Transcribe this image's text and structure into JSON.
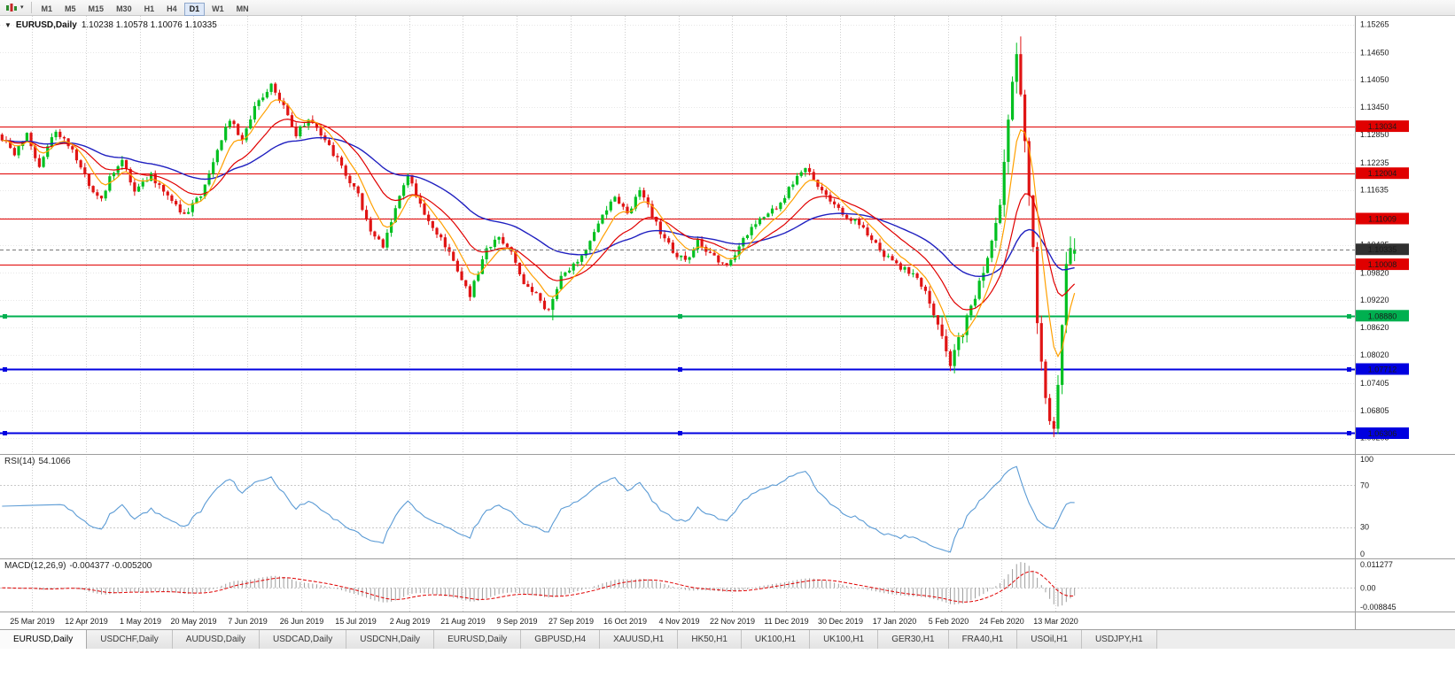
{
  "toolbar": {
    "buttons": [
      "M1",
      "M5",
      "M15",
      "M30",
      "H1",
      "H4",
      "D1",
      "W1",
      "MN"
    ],
    "active": "D1"
  },
  "chart": {
    "collapse_arrow": "▼"
  },
  "chart_data": {
    "type": "candlestick",
    "symbol": "EURUSD",
    "timeframe": "Daily",
    "title": "EURUSD,Daily",
    "ohlc_text": "1.10238 1.10578 1.10076 1.10335",
    "open": "1.10238",
    "high": "1.10578",
    "low": "1.10076",
    "close": "1.10335",
    "y_axis": {
      "min": 1.0585,
      "max": 1.1545,
      "tick_labels": [
        "1.15265",
        "1.14650",
        "1.14050",
        "1.13450",
        "1.12850",
        "1.12235",
        "1.11635",
        "1.11035",
        "1.10435",
        "1.09820",
        "1.09220",
        "1.08620",
        "1.08020",
        "1.07405",
        "1.06805",
        "1.06205"
      ]
    },
    "x_axis": {
      "date_labels": [
        "25 Mar 2019",
        "12 Apr 2019",
        "1 May 2019",
        "20 May 2019",
        "7 Jun 2019",
        "26 Jun 2019",
        "15 Jul 2019",
        "2 Aug 2019",
        "21 Aug 2019",
        "9 Sep 2019",
        "27 Sep 2019",
        "16 Oct 2019",
        "4 Nov 2019",
        "22 Nov 2019",
        "11 Dec 2019",
        "30 Dec 2019",
        "17 Jan 2020",
        "5 Feb 2020",
        "24 Feb 2020",
        "13 Mar 2020"
      ]
    },
    "candle_count": 260,
    "price_anchors": [
      [
        0,
        1.1285
      ],
      [
        4,
        1.1245
      ],
      [
        7,
        1.1285
      ],
      [
        10,
        1.1215
      ],
      [
        14,
        1.1295
      ],
      [
        18,
        1.1255
      ],
      [
        22,
        1.1175
      ],
      [
        25,
        1.114
      ],
      [
        27,
        1.119
      ],
      [
        30,
        1.123
      ],
      [
        33,
        1.116
      ],
      [
        37,
        1.1195
      ],
      [
        41,
        1.115
      ],
      [
        45,
        1.111
      ],
      [
        49,
        1.115
      ],
      [
        53,
        1.125
      ],
      [
        56,
        1.132
      ],
      [
        59,
        1.127
      ],
      [
        62,
        1.135
      ],
      [
        66,
        1.1395
      ],
      [
        69,
        1.1345
      ],
      [
        72,
        1.1285
      ],
      [
        75,
        1.132
      ],
      [
        79,
        1.127
      ],
      [
        83,
        1.1215
      ],
      [
        87,
        1.115
      ],
      [
        90,
        1.1075
      ],
      [
        93,
        1.104
      ],
      [
        96,
        1.112
      ],
      [
        99,
        1.1195
      ],
      [
        102,
        1.113
      ],
      [
        105,
        1.1085
      ],
      [
        108,
        1.104
      ],
      [
        111,
        1.099
      ],
      [
        114,
        1.0935
      ],
      [
        118,
        1.103
      ],
      [
        121,
        1.1065
      ],
      [
        124,
        1.1025
      ],
      [
        127,
        1.0955
      ],
      [
        130,
        1.0935
      ],
      [
        133,
        1.0895
      ],
      [
        136,
        1.097
      ],
      [
        139,
        1.1
      ],
      [
        142,
        1.1035
      ],
      [
        146,
        1.1115
      ],
      [
        149,
        1.1145
      ],
      [
        152,
        1.111
      ],
      [
        155,
        1.116
      ],
      [
        157,
        1.113
      ],
      [
        160,
        1.107
      ],
      [
        163,
        1.103
      ],
      [
        166,
        1.1005
      ],
      [
        169,
        1.1055
      ],
      [
        172,
        1.102
      ],
      [
        176,
        1.1
      ],
      [
        179,
        1.104
      ],
      [
        182,
        1.108
      ],
      [
        185,
        1.111
      ],
      [
        188,
        1.1125
      ],
      [
        191,
        1.1165
      ],
      [
        195,
        1.1215
      ],
      [
        198,
        1.117
      ],
      [
        201,
        1.1135
      ],
      [
        204,
        1.111
      ],
      [
        208,
        1.109
      ],
      [
        211,
        1.106
      ],
      [
        214,
        1.102
      ],
      [
        217,
        1.1
      ],
      [
        221,
        1.098
      ],
      [
        224,
        1.094
      ],
      [
        227,
        1.086
      ],
      [
        230,
        1.0785
      ],
      [
        233,
        1.0855
      ],
      [
        236,
        1.0935
      ],
      [
        239,
        1.101
      ],
      [
        242,
        1.114
      ],
      [
        244,
        1.13
      ],
      [
        245,
        1.14
      ],
      [
        246,
        1.148
      ],
      [
        247,
        1.139
      ],
      [
        248,
        1.128
      ],
      [
        249,
        1.117
      ],
      [
        250,
        1.104
      ],
      [
        251,
        1.089
      ],
      [
        252,
        1.079
      ],
      [
        253,
        1.071
      ],
      [
        254,
        1.066
      ],
      [
        255,
        1.0645
      ],
      [
        256,
        1.072
      ],
      [
        257,
        1.087
      ],
      [
        258,
        1.101
      ],
      [
        259,
        1.1034
      ]
    ],
    "levels": [
      {
        "price": 1.13034,
        "label": "1.13034",
        "color_key": "level_red",
        "width": 1,
        "selected": false
      },
      {
        "price": 1.12004,
        "label": "1.12004",
        "color_key": "level_red",
        "width": 1,
        "selected": false
      },
      {
        "price": 1.11009,
        "label": "1.11009",
        "color_key": "level_red",
        "width": 1,
        "selected": false
      },
      {
        "price": 1.10008,
        "label": "1.10008",
        "color_key": "level_red",
        "width": 1,
        "selected": false
      },
      {
        "price": 1.0888,
        "label": "1.08880",
        "color_key": "level_green",
        "width": 2,
        "selected": true
      },
      {
        "price": 1.07712,
        "label": "1.07712",
        "color_key": "level_blue",
        "width": 2,
        "selected": true
      },
      {
        "price": 1.06306,
        "label": "1.06306",
        "color_key": "level_blue",
        "width": 2,
        "selected": true
      }
    ],
    "current_price": {
      "value": 1.10335,
      "label": "1.10335"
    },
    "indicators": {
      "rsi": {
        "label": "RSI(14)",
        "value": "54.1066",
        "tick_labels": [
          "100",
          "70",
          "30",
          "0"
        ],
        "levels": [
          70,
          30
        ]
      },
      "macd": {
        "label": "MACD(12,26,9)",
        "values": "-0.004377 -0.005200",
        "tick_labels": [
          "0.011277",
          "0.00",
          "-0.008845"
        ],
        "scale_max": 0.011277,
        "scale_min": -0.008845
      }
    },
    "ma_periods": {
      "fast": 7,
      "mid": 18,
      "slow": 45
    },
    "colors": {
      "up": "#00C020",
      "down": "#E01414",
      "ma_fast": "#FFA000",
      "ma_mid": "#E00000",
      "ma_slow": "#2020C0",
      "level_red": "#E00000",
      "level_green": "#00B050",
      "level_blue": "#0000E0",
      "rsi_line": "#5B9BD5",
      "macd_hist": "#9E9E9E",
      "macd_signal": "#E00000",
      "current_badge": "#303030",
      "grid_v": "#cfcfcf",
      "grid_h": "#e7e7e7"
    }
  },
  "tabs": {
    "active_index": 0,
    "items": [
      "EURUSD,Daily",
      "USDCHF,Daily",
      "AUDUSD,Daily",
      "USDCAD,Daily",
      "USDCNH,Daily",
      "EURUSD,Daily",
      "GBPUSD,H4",
      "XAUUSD,H1",
      "HK50,H1",
      "UK100,H1",
      "UK100,H1",
      "GER30,H1",
      "FRA40,H1",
      "USOil,H1",
      "USDJPY,H1"
    ]
  }
}
